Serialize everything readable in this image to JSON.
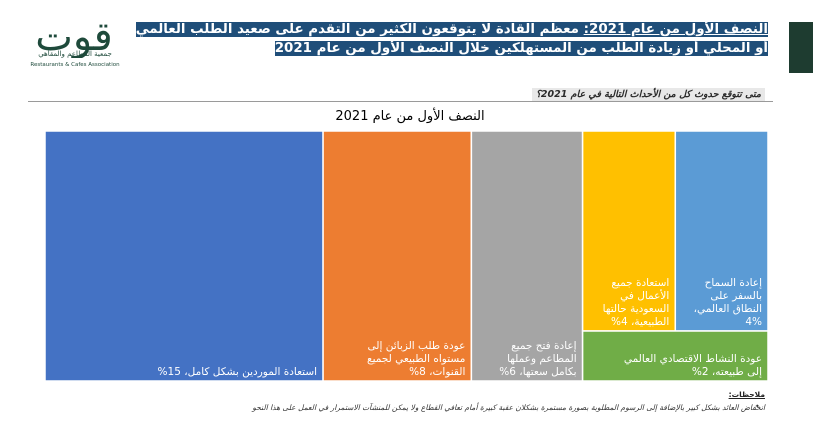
{
  "logo": {
    "wordmark": "قوت",
    "subtitle_ar": "جمعية المطاعم والمقاهي",
    "subtitle_en": "Restaurants & Cafes Association",
    "color": "#1e4a3b"
  },
  "headline": {
    "highlight": "النصف الأول من عام 2021:",
    "rest": " معظم القادة لا يتوقعون الكثير من التقدم على صعيد الطلب العالمي أو المحلي أو زيادة الطلب من المستهلكين خلال النصف الأول من عام 2021",
    "bg_color": "#1f4e79"
  },
  "question": "متى تتوقع حدوث كل من الأحداث التالية في عام 2021؟",
  "notes": {
    "title": "ملاحظات:",
    "line": "انخفاض العائد بشكل كبير بالإضافة إلى الرسوم المطلوبة بصورة مستمرة بشكلان عقبة كبيرة أمام تعافي القطاع ولا يمكن للمنشآت الاستمرار في العمل على هذا النحو"
  },
  "chart_data": {
    "type": "treemap",
    "title": "النصف الأول من عام 2021",
    "items": [
      {
        "label": "استعادة الموردين بشكل كامل، 15%",
        "value": 15,
        "color": "#4472c4"
      },
      {
        "label": "عودة طلب الزبائن إلى مستواه الطبيعي لجميع القنوات، 8%",
        "value": 8,
        "color": "#ed7d31"
      },
      {
        "label": "إعادة فتح جميع المطاعم وعملها بكامل سعتها، 6%",
        "value": 6,
        "color": "#a5a5a5"
      },
      {
        "label": "استعادة جميع الأعمال في السعودية حالتها الطبيعية، 4%",
        "value": 4,
        "color": "#ffc000"
      },
      {
        "label": "إعادة السماح بالسفر على النطاق العالمي، 4%",
        "value": 4,
        "color": "#5b9bd5"
      },
      {
        "label": "عودة النشاط الاقتصادي العالمي إلى طبيعته، 2%",
        "value": 2,
        "color": "#70ad47"
      }
    ]
  }
}
